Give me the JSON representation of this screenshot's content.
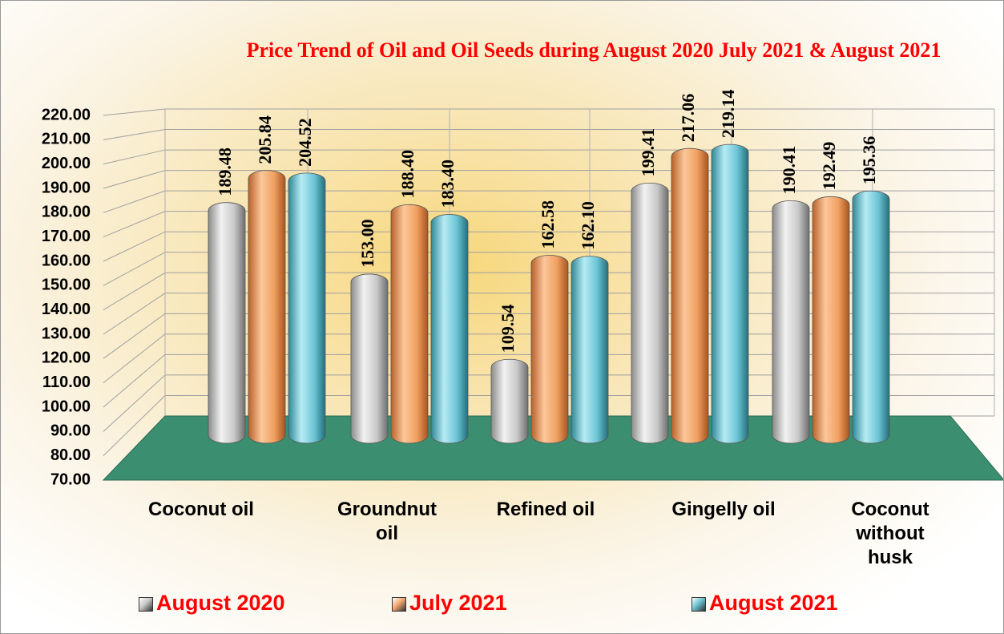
{
  "chart_data": {
    "type": "bar",
    "title": "Price Trend of Oil and Oil Seeds during  August 2020  July 2021  & August 2021",
    "categories": [
      "Coconut oil",
      "Groundnut oil",
      "Refined oil",
      "Gingelly oil",
      "Coconut without husk"
    ],
    "series": [
      {
        "name": "August 2020",
        "color": "#c8c8c8",
        "values": [
          189.48,
          153.0,
          109.54,
          199.41,
          190.41
        ],
        "value_labels": [
          "189.48",
          "153.00",
          "109.54",
          "199.41",
          "190.41"
        ]
      },
      {
        "name": "July 2021",
        "color": "#f4a870",
        "values": [
          205.84,
          188.4,
          162.58,
          217.06,
          192.49
        ],
        "value_labels": [
          "205.84",
          "188.40",
          "162.58",
          "217.06",
          "192.49"
        ]
      },
      {
        "name": "August 2021",
        "color": "#6cc4d4",
        "values": [
          204.52,
          183.4,
          162.1,
          219.14,
          195.36
        ],
        "value_labels": [
          "204.52",
          "183.40",
          "162.10",
          "219.14",
          "195.36"
        ]
      }
    ],
    "ylim": [
      70,
      220
    ],
    "yticks": [
      {
        "value": 70,
        "label": "70.00"
      },
      {
        "value": 80,
        "label": "80.00"
      },
      {
        "value": 90,
        "label": "90.00"
      },
      {
        "value": 100,
        "label": "100.00"
      },
      {
        "value": 110,
        "label": "110.00"
      },
      {
        "value": 120,
        "label": "120.00"
      },
      {
        "value": 130,
        "label": "130.00"
      },
      {
        "value": 140,
        "label": "140.00"
      },
      {
        "value": 150,
        "label": "150.00"
      },
      {
        "value": 160,
        "label": "160.00"
      },
      {
        "value": 170,
        "label": "170.00"
      },
      {
        "value": 180,
        "label": "180.00"
      },
      {
        "value": 190,
        "label": "190.00"
      },
      {
        "value": 200,
        "label": "200.00"
      },
      {
        "value": 210,
        "label": "210.00"
      },
      {
        "value": 220,
        "label": "220.00"
      }
    ],
    "grid": true
  }
}
